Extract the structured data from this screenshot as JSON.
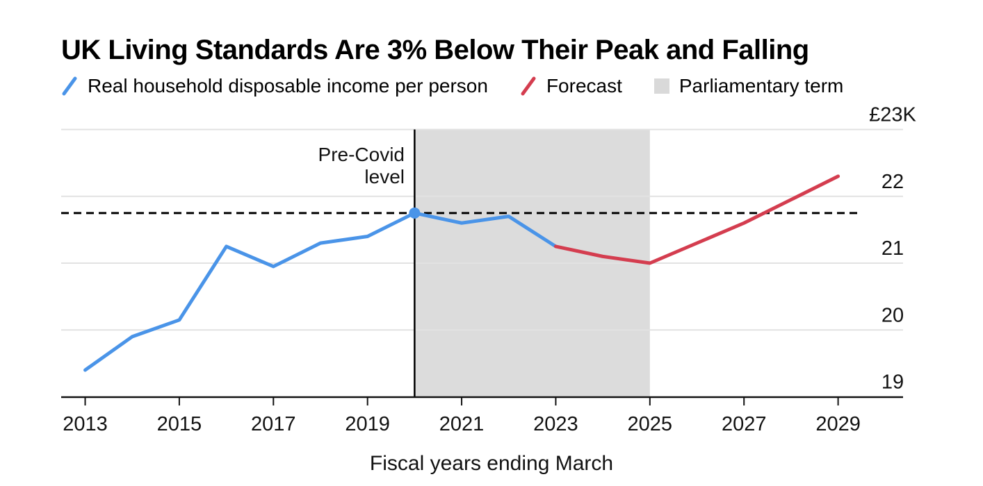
{
  "chart": {
    "title": "UK Living Standards Are 3% Below Their Peak and Falling",
    "legend": {
      "actual": "Real household disposable income per person",
      "forecast": "Forecast",
      "band": "Parliamentary term"
    },
    "annotation_text": "Pre-Covid\nlevel",
    "xlabel": "Fiscal years ending March"
  },
  "chart_data": {
    "type": "line",
    "title": "UK Living Standards Are 3% Below Their Peak and Falling",
    "xlabel": "Fiscal years ending March",
    "ylabel": "",
    "y_unit": "GBP thousands",
    "grid": "horizontal",
    "legend_position": "top",
    "xlim": [
      2012.49,
      2030.38
    ],
    "ylim": [
      19,
      23
    ],
    "x_ticks": [
      2013,
      2015,
      2017,
      2019,
      2021,
      2023,
      2025,
      2027,
      2029
    ],
    "y_ticks": [
      {
        "value": 23,
        "label": "£23K"
      },
      {
        "value": 22,
        "label": "22"
      },
      {
        "value": 21,
        "label": "21"
      },
      {
        "value": 20,
        "label": "20"
      },
      {
        "value": 19,
        "label": "19"
      }
    ],
    "series": [
      {
        "name": "Real household disposable income per person",
        "color": "#4a94e8",
        "x": [
          2013,
          2014,
          2015,
          2016,
          2017,
          2018,
          2019,
          2020,
          2021,
          2022,
          2023
        ],
        "values": [
          19.4,
          19.9,
          20.15,
          21.25,
          20.95,
          21.3,
          21.4,
          21.75,
          21.6,
          21.7,
          21.25
        ]
      },
      {
        "name": "Forecast",
        "color": "#d43d4f",
        "x": [
          2023,
          2024,
          2025,
          2026,
          2027,
          2028,
          2029
        ],
        "values": [
          21.25,
          21.1,
          21.0,
          21.3,
          21.6,
          21.95,
          22.3
        ]
      }
    ],
    "reference_line": {
      "label": "Pre-Covid level",
      "value": 21.75,
      "style": "dashed",
      "color": "#000000",
      "x_end": 2029.47
    },
    "band": {
      "label": "Parliamentary term",
      "from": 2020,
      "to": 2025,
      "color": "#dcdcdc",
      "left_edge_line": true
    },
    "peak_marker": {
      "x": 2020,
      "value": 21.75,
      "color": "#4a94e8"
    }
  },
  "colors": {
    "actual_line": "#4a94e8",
    "forecast_line": "#d43d4f",
    "band_fill": "#dcdcdc",
    "band_swatch": "#d9d9d9",
    "gridline": "#e2e2e2",
    "axis": "#111111",
    "text": "#111111"
  }
}
